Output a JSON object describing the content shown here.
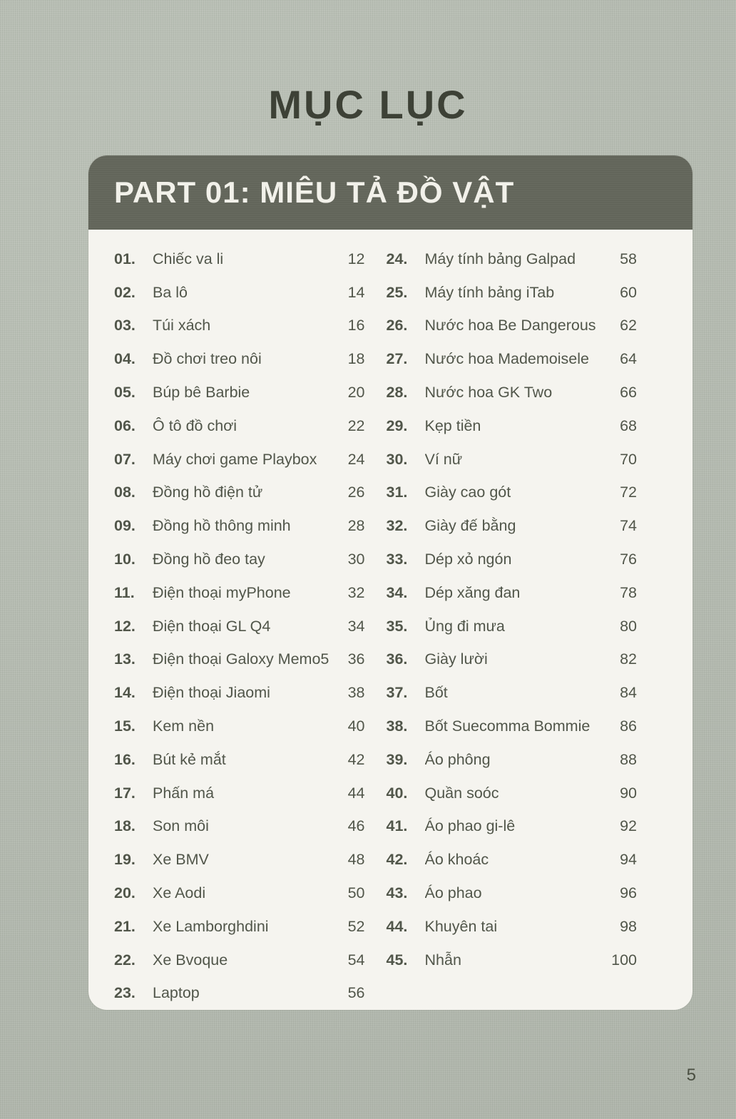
{
  "page": {
    "title": "MỤC LỤC",
    "page_number": "5",
    "colors": {
      "background": "#b7bdb3",
      "card": "#f5f4ef",
      "band": "#62655a",
      "band_text": "#f2f1ea",
      "text": "#51564a",
      "title_text": "#3d4136"
    }
  },
  "toc": {
    "part_header": "PART 01: MIÊU TẢ ĐỒ VẬT",
    "columns": [
      {
        "entries": [
          {
            "num": "01.",
            "title": "Chiếc va li",
            "page": "12"
          },
          {
            "num": "02.",
            "title": "Ba lô",
            "page": "14"
          },
          {
            "num": "03.",
            "title": "Túi xách",
            "page": "16"
          },
          {
            "num": "04.",
            "title": "Đồ chơi treo nôi",
            "page": "18"
          },
          {
            "num": "05.",
            "title": "Búp bê Barbie",
            "page": "20"
          },
          {
            "num": "06.",
            "title": "Ô tô đồ chơi",
            "page": "22"
          },
          {
            "num": "07.",
            "title": "Máy chơi game Playbox",
            "page": "24"
          },
          {
            "num": "08.",
            "title": "Đồng hồ điện tử",
            "page": "26"
          },
          {
            "num": "09.",
            "title": "Đồng hồ thông minh",
            "page": "28"
          },
          {
            "num": "10.",
            "title": "Đồng hồ đeo tay",
            "page": "30"
          },
          {
            "num": "11.",
            "title": "Điện thoại myPhone",
            "page": "32"
          },
          {
            "num": "12.",
            "title": "Điện thoại GL Q4",
            "page": "34"
          },
          {
            "num": "13.",
            "title": "Điện thoại Galoxy Memo5",
            "page": "36"
          },
          {
            "num": "14.",
            "title": "Điện thoại Jiaomi",
            "page": "38"
          },
          {
            "num": "15.",
            "title": "Kem nền",
            "page": "40"
          },
          {
            "num": "16.",
            "title": "Bút kẻ mắt",
            "page": "42"
          },
          {
            "num": "17.",
            "title": "Phấn má",
            "page": "44"
          },
          {
            "num": "18.",
            "title": "Son môi",
            "page": "46"
          },
          {
            "num": "19.",
            "title": "Xe BMV",
            "page": "48"
          },
          {
            "num": "20.",
            "title": "Xe Aodi",
            "page": "50"
          },
          {
            "num": "21.",
            "title": "Xe Lamborghdini",
            "page": "52"
          },
          {
            "num": "22.",
            "title": "Xe Bvoque",
            "page": "54"
          },
          {
            "num": "23.",
            "title": "Laptop",
            "page": "56"
          }
        ]
      },
      {
        "entries": [
          {
            "num": "24.",
            "title": "Máy tính bảng Galpad",
            "page": "58"
          },
          {
            "num": "25.",
            "title": "Máy tính bảng iTab",
            "page": "60"
          },
          {
            "num": "26.",
            "title": "Nước hoa Be Dangerous",
            "page": "62"
          },
          {
            "num": "27.",
            "title": "Nước hoa Mademoisele",
            "page": "64"
          },
          {
            "num": "28.",
            "title": "Nước hoa GK Two",
            "page": "66"
          },
          {
            "num": "29.",
            "title": "Kẹp tiền",
            "page": "68"
          },
          {
            "num": "30.",
            "title": "Ví nữ",
            "page": "70"
          },
          {
            "num": "31.",
            "title": "Giày cao gót",
            "page": "72"
          },
          {
            "num": "32.",
            "title": "Giày đế bằng",
            "page": "74"
          },
          {
            "num": "33.",
            "title": "Dép xỏ ngón",
            "page": "76"
          },
          {
            "num": "34.",
            "title": "Dép xăng đan",
            "page": "78"
          },
          {
            "num": "35.",
            "title": "Ủng đi mưa",
            "page": "80"
          },
          {
            "num": "36.",
            "title": "Giày lười",
            "page": "82"
          },
          {
            "num": "37.",
            "title": "Bốt",
            "page": "84"
          },
          {
            "num": "38.",
            "title": "Bốt Suecomma Bommie",
            "page": "86"
          },
          {
            "num": "39.",
            "title": "Áo phông",
            "page": "88"
          },
          {
            "num": "40.",
            "title": "Quần soóc",
            "page": "90"
          },
          {
            "num": "41.",
            "title": "Áo phao gi-lê",
            "page": "92"
          },
          {
            "num": "42.",
            "title": "Áo khoác",
            "page": "94"
          },
          {
            "num": "43.",
            "title": "Áo phao",
            "page": "96"
          },
          {
            "num": "44.",
            "title": "Khuyên tai",
            "page": "98"
          },
          {
            "num": "45.",
            "title": "Nhẫn",
            "page": "100"
          }
        ]
      }
    ]
  }
}
